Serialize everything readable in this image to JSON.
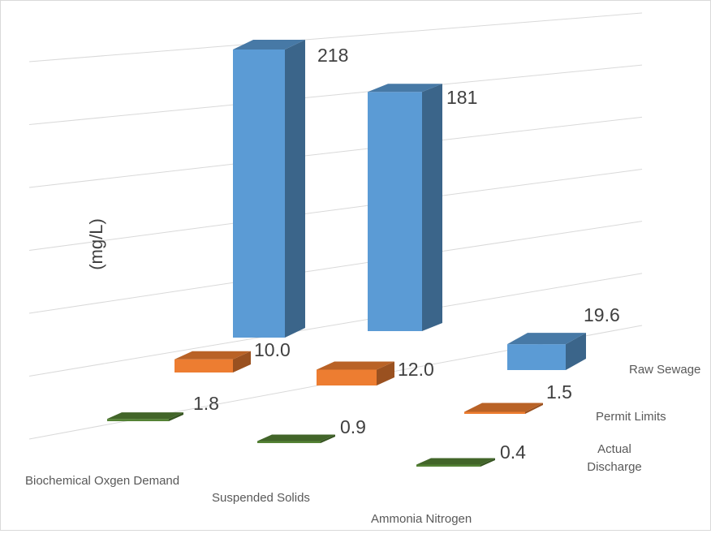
{
  "chart_data": {
    "type": "bar",
    "style": "3d-column",
    "title": "",
    "ylabel": "(mg/L)",
    "ylim": [
      0,
      250
    ],
    "grid": true,
    "categories": [
      "Biochemical Oxgen Demand",
      "Suspended Solids",
      "Ammonia Nitrogen"
    ],
    "series": [
      {
        "name": "Raw Sewage",
        "values": [
          218,
          181,
          19.6
        ],
        "labels": [
          "218",
          "181",
          "19.6"
        ],
        "color": "#5b9bd5"
      },
      {
        "name": "Permit Limits",
        "values": [
          10.0,
          12.0,
          1.5
        ],
        "labels": [
          "10.0",
          "12.0",
          "1.5"
        ],
        "color": "#ed7d31"
      },
      {
        "name": "Actual Discharge",
        "values": [
          1.8,
          0.9,
          0.4
        ],
        "labels": [
          "1.8",
          "0.9",
          "0.4"
        ],
        "color": "#548235"
      }
    ]
  }
}
